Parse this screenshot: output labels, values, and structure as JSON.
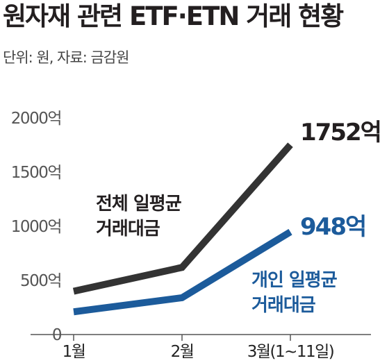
{
  "title": "원자재 관련 ETF·ETN 거래 현황",
  "subtitle": "단위: 원, 자료: 금감원",
  "chart_data": {
    "type": "line",
    "title": "원자재 관련 ETF·ETN 거래 현황",
    "categories": [
      "1월",
      "2월",
      "3월(1~11일)"
    ],
    "y_tick_labels": [
      "0",
      "500억",
      "1000억",
      "1500억",
      "2000억"
    ],
    "ylim": [
      0,
      2000
    ],
    "grid": false,
    "series": [
      {
        "name": "전체 일평균 거래대금",
        "label_lines": [
          "전체 일평균",
          "거래대금"
        ],
        "values": [
          400,
          620,
          1752
        ],
        "end_label": "1752억",
        "color": "#333333"
      },
      {
        "name": "개인 일평균 거래대금",
        "label_lines": [
          "개인 일평균",
          "거래대금"
        ],
        "values": [
          210,
          340,
          948
        ],
        "end_label": "948억",
        "color": "#1c5b9b"
      }
    ]
  }
}
